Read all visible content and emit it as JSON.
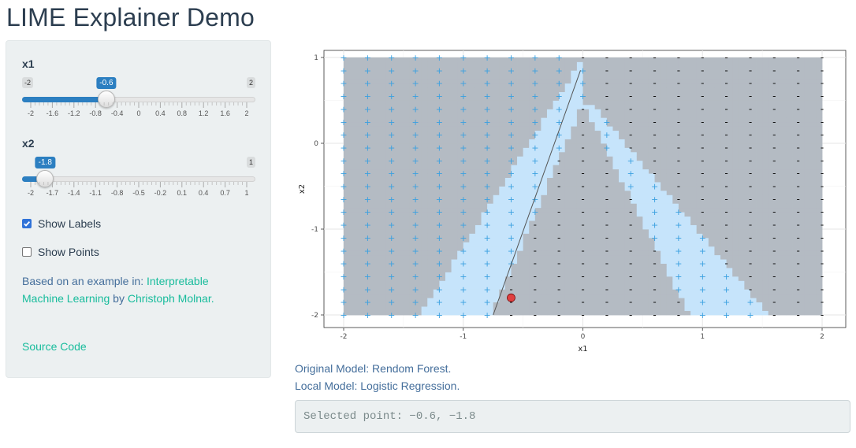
{
  "app": {
    "title": "LIME Explainer Demo"
  },
  "sliders": [
    {
      "id": "x1",
      "label": "x1",
      "min_label": "-2",
      "max_label": "2",
      "value_label": "-0.6",
      "min": -2,
      "max": 2,
      "value": -0.6,
      "ticks": [
        "-2",
        "-1.6",
        "-1.2",
        "-0.8",
        "-0.4",
        "0",
        "0.4",
        "0.8",
        "1.2",
        "1.6",
        "2"
      ]
    },
    {
      "id": "x2",
      "label": "x2",
      "min_label": "-2",
      "max_label": "1",
      "value_label": "-1.8",
      "min": -2,
      "max": 1,
      "value": -1.8,
      "ticks": [
        "-2",
        "-1.7",
        "-1.4",
        "-1.1",
        "-0.8",
        "-0.5",
        "-0.2",
        "0.1",
        "0.4",
        "0.7",
        "1"
      ]
    }
  ],
  "checkboxes": [
    {
      "label": "Show Labels",
      "checked": true
    },
    {
      "label": "Show Points",
      "checked": false
    }
  ],
  "note": {
    "prefix": "Based on an example in: ",
    "book": "Interpretable Machine Learning",
    "middle": " by ",
    "author": "Christoph Molnar."
  },
  "source_link": "Source Code",
  "model_info": {
    "original": "Original Model: Rendom Forest.",
    "local": "Local Model: Logistic Regression."
  },
  "selected_point_text": "Selected point: −0.6, −1.8",
  "chart_data": {
    "type": "scatter",
    "xlabel": "x1",
    "ylabel": "x2",
    "xlim": [
      -2,
      2
    ],
    "ylim": [
      -2,
      1
    ],
    "x_ticks": [
      "-2",
      "-1",
      "0",
      "1",
      "2"
    ],
    "y_ticks": [
      "-2",
      "-1",
      "0",
      "1"
    ],
    "grid": true,
    "label_grid": {
      "x_min": -2,
      "x_max": 2,
      "x_step": 0.2,
      "y_min": -2,
      "y_max": 1,
      "y_step": 0.15,
      "positive_symbol": "+",
      "negative_symbol": "-"
    },
    "regions": {
      "positive_color": "#c6e4fb",
      "negative_color": "#b4bbc3"
    },
    "selected_point": {
      "x": -0.6,
      "y": -1.8,
      "color": "#e04040"
    },
    "local_boundary": {
      "x": [
        -0.75,
        -0.02
      ],
      "y": [
        -2.0,
        0.85
      ]
    },
    "colors": {
      "positive_label": "#3aa0e0",
      "negative_label": "#111111"
    }
  }
}
